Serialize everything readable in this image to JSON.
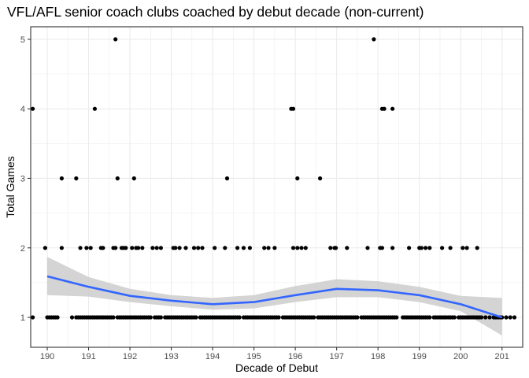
{
  "chart_data": {
    "type": "scatter",
    "title": "VFL/AFL senior coach clubs coached by debut decade (non-current)",
    "xlabel": "Decade of Debut",
    "ylabel": "Total Games",
    "x_ticks": [
      "190",
      "191",
      "192",
      "193",
      "194",
      "195",
      "196",
      "197",
      "198",
      "199",
      "200",
      "201"
    ],
    "y_ticks": [
      "1",
      "2",
      "3",
      "4",
      "5"
    ],
    "xlim": [
      189.6,
      201.5
    ],
    "ylim": [
      0.57,
      5.18
    ],
    "grid": true,
    "legend": "none",
    "points": {
      "y1": [
        189.65,
        190.0,
        190.05,
        190.1,
        190.15,
        190.2,
        190.25,
        190.6,
        190.7,
        190.75,
        190.8,
        190.85,
        190.9,
        190.95,
        191.0,
        191.05,
        191.1,
        191.15,
        191.2,
        191.25,
        191.3,
        191.35,
        191.4,
        191.45,
        191.5,
        191.55,
        191.6,
        191.7,
        191.75,
        191.8,
        191.85,
        191.9,
        191.95,
        192.0,
        192.05,
        192.1,
        192.15,
        192.2,
        192.25,
        192.3,
        192.35,
        192.4,
        192.45,
        192.5,
        192.6,
        192.65,
        192.7,
        192.75,
        192.85,
        192.9,
        192.95,
        193.0,
        193.05,
        193.1,
        193.15,
        193.2,
        193.25,
        193.3,
        193.35,
        193.4,
        193.45,
        193.5,
        193.55,
        193.6,
        193.7,
        193.75,
        193.8,
        193.85,
        193.9,
        193.95,
        194.0,
        194.05,
        194.1,
        194.15,
        194.2,
        194.25,
        194.3,
        194.35,
        194.4,
        194.45,
        194.5,
        194.55,
        194.6,
        194.65,
        194.75,
        194.8,
        194.85,
        194.9,
        194.95,
        195.0,
        195.05,
        195.1,
        195.15,
        195.2,
        195.25,
        195.3,
        195.35,
        195.4,
        195.45,
        195.5,
        195.55,
        195.6,
        195.7,
        195.75,
        195.8,
        195.85,
        195.9,
        195.95,
        196.0,
        196.05,
        196.1,
        196.15,
        196.2,
        196.25,
        196.3,
        196.35,
        196.4,
        196.45,
        196.55,
        196.6,
        196.65,
        196.7,
        196.75,
        196.8,
        196.85,
        196.9,
        196.95,
        197.0,
        197.05,
        197.1,
        197.15,
        197.2,
        197.25,
        197.3,
        197.35,
        197.4,
        197.45,
        197.5,
        197.6,
        197.65,
        197.7,
        197.75,
        197.8,
        197.85,
        197.9,
        197.95,
        198.0,
        198.05,
        198.1,
        198.15,
        198.2,
        198.25,
        198.3,
        198.35,
        198.4,
        198.45,
        198.6,
        198.65,
        198.7,
        198.75,
        198.8,
        198.85,
        198.9,
        198.95,
        199.0,
        199.05,
        199.1,
        199.15,
        199.2,
        199.25,
        199.35,
        199.4,
        199.45,
        199.5,
        199.55,
        199.6,
        199.65,
        199.7,
        199.75,
        199.8,
        199.85,
        199.95,
        200.0,
        200.05,
        200.1,
        200.15,
        200.2,
        200.25,
        200.3,
        200.35,
        200.4,
        200.45,
        200.5,
        200.6,
        200.7,
        200.8,
        200.85,
        200.9,
        200.95,
        201.0,
        201.1,
        201.2,
        201.3
      ],
      "y2": [
        189.95,
        190.35,
        190.8,
        190.95,
        191.05,
        191.3,
        191.35,
        191.6,
        191.65,
        191.8,
        191.85,
        191.9,
        192.05,
        192.15,
        192.2,
        192.3,
        192.55,
        192.65,
        192.75,
        193.05,
        193.1,
        193.2,
        193.35,
        193.55,
        193.65,
        193.75,
        194.05,
        194.3,
        194.6,
        194.75,
        194.9,
        195.25,
        195.35,
        195.5,
        195.95,
        196.05,
        196.15,
        196.25,
        196.85,
        196.95,
        196.98,
        197.25,
        197.75,
        198.05,
        198.1,
        198.35,
        198.75,
        199.0,
        199.05,
        199.15,
        199.25,
        199.55,
        199.75,
        200.05,
        200.15,
        200.4
      ],
      "y3": [
        190.35,
        190.7,
        191.7,
        192.1,
        194.35,
        196.05,
        196.6
      ],
      "y4": [
        189.65,
        191.15,
        195.9,
        195.95,
        198.1,
        198.15,
        198.35
      ],
      "y5": [
        191.65,
        197.9
      ]
    },
    "smooth": {
      "x": [
        190.0,
        191.0,
        192.0,
        193.0,
        194.0,
        195.0,
        196.0,
        197.0,
        198.0,
        199.0,
        200.0,
        201.0
      ],
      "y": [
        1.59,
        1.44,
        1.31,
        1.24,
        1.19,
        1.22,
        1.32,
        1.41,
        1.39,
        1.32,
        1.19,
        1.0
      ],
      "lo": [
        1.32,
        1.3,
        1.22,
        1.16,
        1.11,
        1.13,
        1.22,
        1.29,
        1.29,
        1.22,
        1.09,
        0.74
      ],
      "hi": [
        1.87,
        1.58,
        1.41,
        1.32,
        1.28,
        1.32,
        1.45,
        1.55,
        1.52,
        1.44,
        1.31,
        1.28
      ],
      "color": "#3366FF",
      "band_color": "#CCCCCC"
    }
  }
}
